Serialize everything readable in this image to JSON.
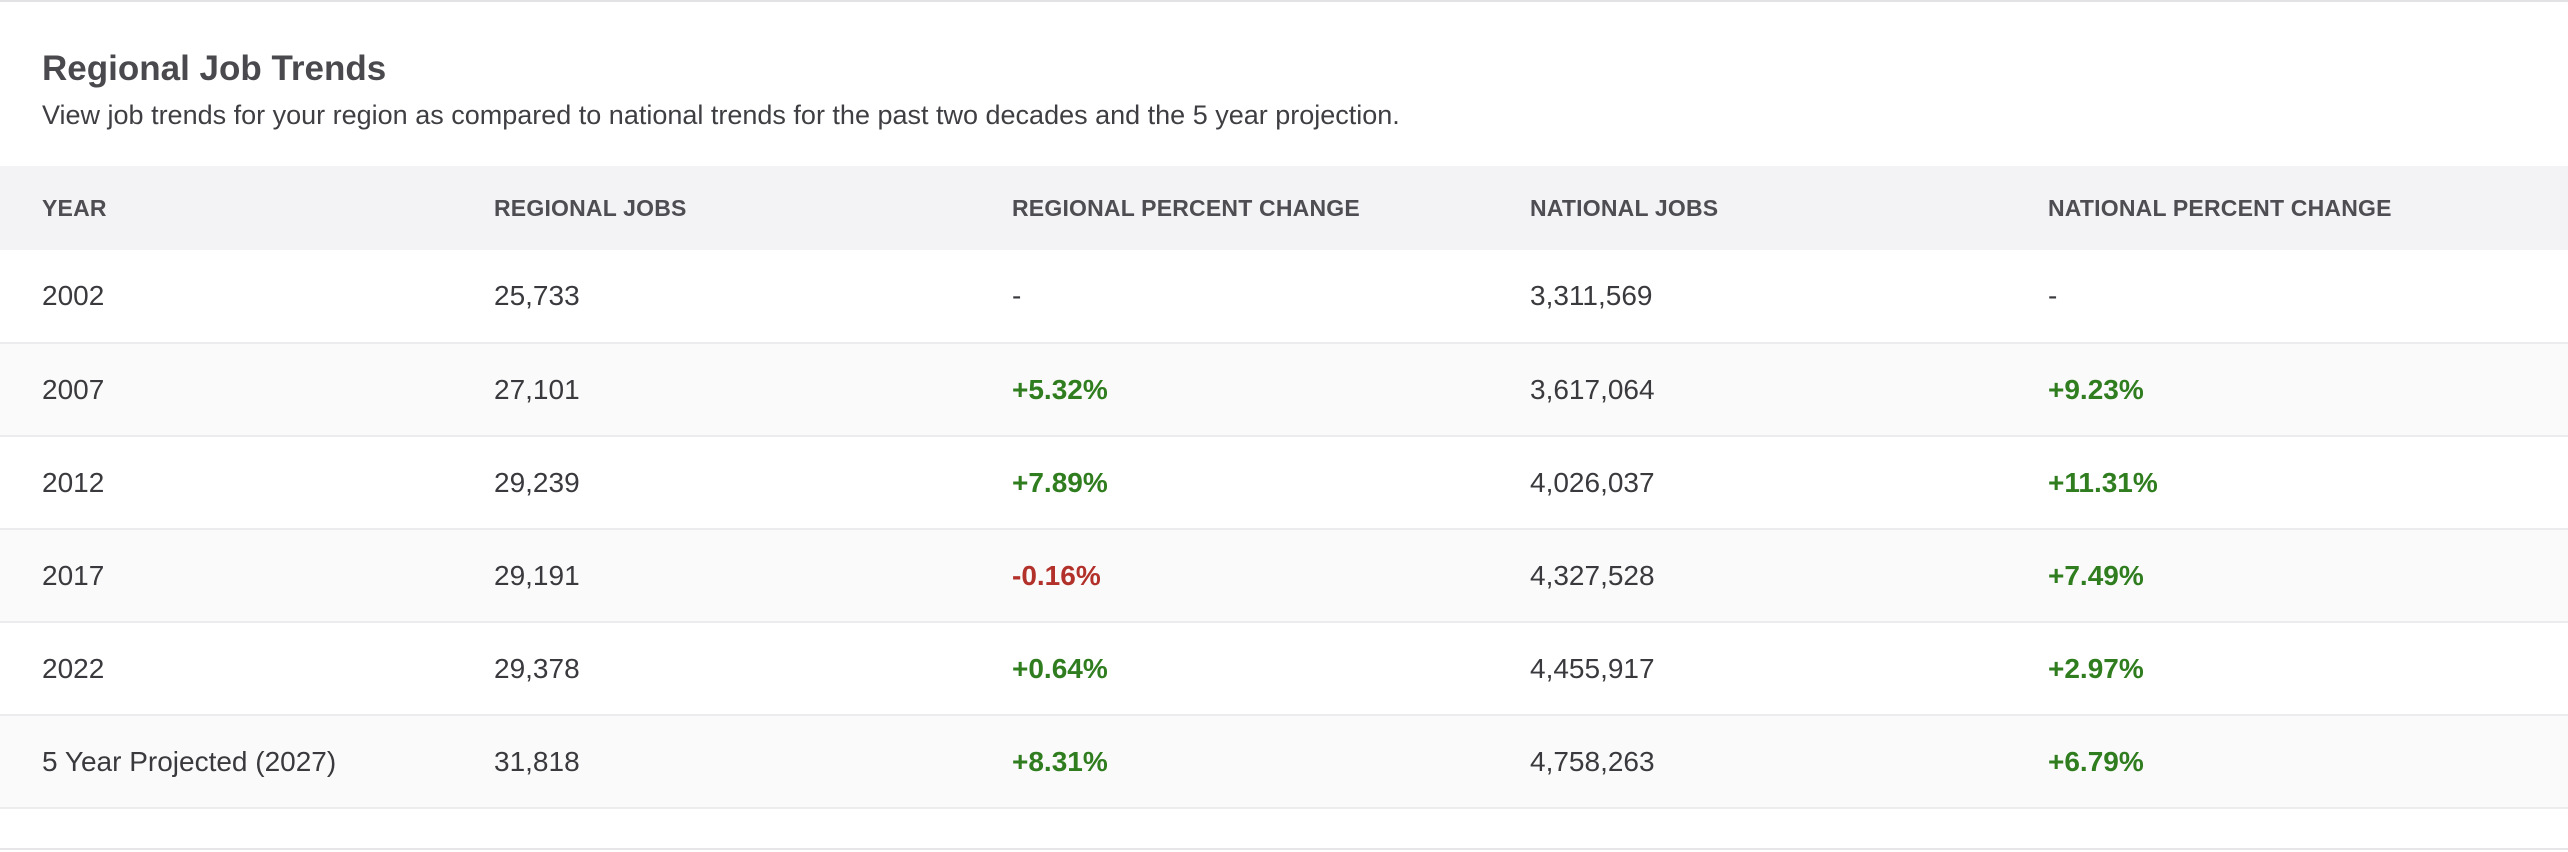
{
  "section": {
    "title": "Regional Job Trends",
    "description": "View job trends for your region as compared to national trends for the past two decades and the 5 year projection."
  },
  "table": {
    "headers": [
      "YEAR",
      "REGIONAL JOBS",
      "REGIONAL PERCENT CHANGE",
      "NATIONAL JOBS",
      "NATIONAL PERCENT CHANGE"
    ],
    "rows": [
      {
        "year": "2002",
        "regional_jobs": "25,733",
        "regional_change": "-",
        "national_jobs": "3,311,569",
        "national_change": "-"
      },
      {
        "year": "2007",
        "regional_jobs": "27,101",
        "regional_change": "+5.32%",
        "national_jobs": "3,617,064",
        "national_change": "+9.23%"
      },
      {
        "year": "2012",
        "regional_jobs": "29,239",
        "regional_change": "+7.89%",
        "national_jobs": "4,026,037",
        "national_change": "+11.31%"
      },
      {
        "year": "2017",
        "regional_jobs": "29,191",
        "regional_change": "-0.16%",
        "national_jobs": "4,327,528",
        "national_change": "+7.49%"
      },
      {
        "year": "2022",
        "regional_jobs": "29,378",
        "regional_change": "+0.64%",
        "national_jobs": "4,455,917",
        "national_change": "+2.97%"
      },
      {
        "year": "5 Year Projected (2027)",
        "regional_jobs": "31,818",
        "regional_change": "+8.31%",
        "national_jobs": "4,758,263",
        "national_change": "+6.79%"
      }
    ]
  },
  "colors": {
    "positive": "#2f7d1f",
    "negative": "#b2312b",
    "header_bg": "#f3f3f5"
  }
}
